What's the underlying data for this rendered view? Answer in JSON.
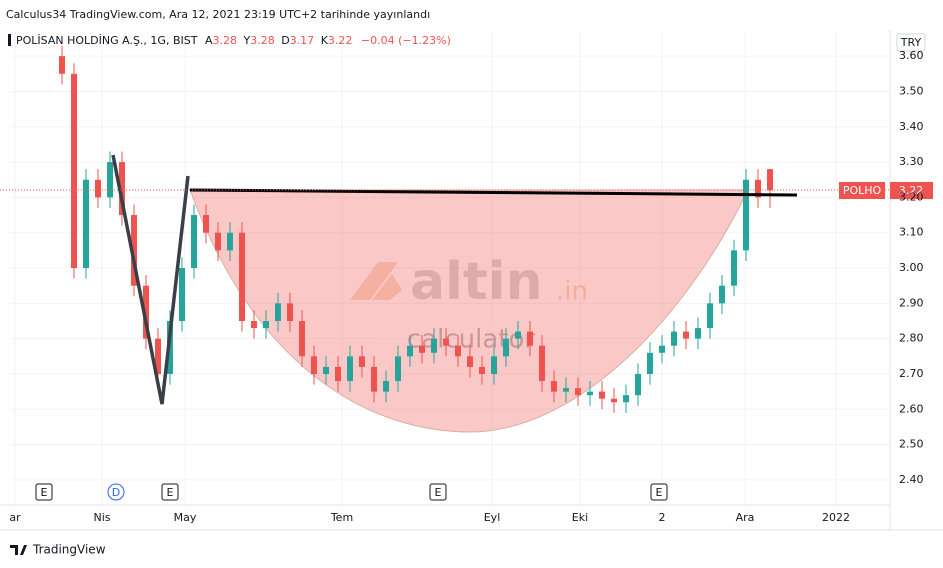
{
  "chart_data": {
    "type": "candlestick",
    "published": "Calculus34 TradingView.com, Ara 12, 2021 23:19 UTC+2 tarihinde yayınlandı",
    "symbol": "POLİSAN HOLDİNG A.Ş., 1G, BIST",
    "ohlc_labels": [
      "A",
      "Y",
      "D",
      "K"
    ],
    "change": "−0.04 (−1.23%)",
    "currency": "TRY",
    "ticker": "POLHO",
    "watermark": [
      "altin",
      ".in",
      "calculator"
    ],
    "events": [
      "E",
      "D",
      "E",
      "E",
      "E"
    ],
    "footer": "TradingView",
    "up_color": "#26a69a",
    "down_color": "#ef5350",
    "x": [
      13,
      16,
      19,
      22,
      25,
      28,
      31,
      34,
      37,
      40,
      43,
      46,
      49,
      52,
      55,
      58,
      61,
      64,
      67,
      70,
      73,
      76,
      79,
      82,
      85,
      88,
      91,
      94,
      97,
      100,
      103,
      106,
      109,
      112,
      115,
      118,
      121,
      124,
      127,
      130,
      133,
      136,
      139,
      142,
      145,
      148,
      151,
      154,
      157,
      160,
      163,
      166,
      169,
      172,
      175,
      178,
      181,
      184,
      187,
      190
    ],
    "open": [
      3.6,
      3.55,
      3.0,
      3.25,
      3.2,
      3.3,
      3.15,
      2.95,
      2.8,
      2.7,
      2.85,
      3.0,
      3.15,
      3.1,
      3.05,
      3.1,
      2.85,
      2.83,
      2.85,
      2.9,
      2.85,
      2.75,
      2.7,
      2.72,
      2.68,
      2.75,
      2.72,
      2.65,
      2.68,
      2.75,
      2.78,
      2.76,
      2.8,
      2.78,
      2.75,
      2.72,
      2.7,
      2.75,
      2.8,
      2.82,
      2.78,
      2.68,
      2.65,
      2.66,
      2.64,
      2.65,
      2.63,
      2.62,
      2.64,
      2.7,
      2.76,
      2.78,
      2.82,
      2.8,
      2.83,
      2.9,
      2.95,
      3.05,
      3.25,
      3.28
    ],
    "high": [
      3.63,
      3.58,
      3.28,
      3.28,
      3.33,
      3.33,
      3.18,
      2.98,
      2.83,
      2.88,
      3.03,
      3.18,
      3.18,
      3.13,
      3.13,
      3.13,
      2.88,
      2.88,
      2.93,
      2.93,
      2.88,
      2.78,
      2.75,
      2.75,
      2.78,
      2.78,
      2.75,
      2.71,
      2.78,
      2.81,
      2.81,
      2.83,
      2.83,
      2.81,
      2.78,
      2.75,
      2.78,
      2.83,
      2.85,
      2.85,
      2.81,
      2.71,
      2.69,
      2.69,
      2.68,
      2.68,
      2.66,
      2.67,
      2.73,
      2.79,
      2.81,
      2.85,
      2.85,
      2.86,
      2.93,
      2.98,
      3.08,
      3.28,
      3.28,
      3.28
    ],
    "low": [
      3.52,
      2.97,
      2.97,
      3.17,
      3.17,
      3.12,
      2.92,
      2.77,
      2.67,
      2.67,
      2.82,
      2.97,
      3.07,
      3.02,
      3.02,
      2.82,
      2.8,
      2.8,
      2.82,
      2.82,
      2.72,
      2.67,
      2.67,
      2.65,
      2.65,
      2.69,
      2.62,
      2.62,
      2.65,
      2.72,
      2.73,
      2.73,
      2.75,
      2.72,
      2.69,
      2.67,
      2.67,
      2.72,
      2.77,
      2.75,
      2.65,
      2.62,
      2.62,
      2.61,
      2.61,
      2.6,
      2.59,
      2.59,
      2.61,
      2.67,
      2.73,
      2.75,
      2.77,
      2.77,
      2.8,
      2.87,
      2.92,
      3.02,
      3.17,
      3.17
    ],
    "close": [
      3.55,
      3.0,
      3.25,
      3.2,
      3.3,
      3.15,
      2.95,
      2.8,
      2.7,
      2.85,
      3.0,
      3.15,
      3.1,
      3.05,
      3.1,
      2.85,
      2.83,
      2.85,
      2.9,
      2.85,
      2.75,
      2.7,
      2.72,
      2.68,
      2.75,
      2.72,
      2.65,
      2.68,
      2.75,
      2.78,
      2.76,
      2.8,
      2.78,
      2.75,
      2.72,
      2.7,
      2.75,
      2.8,
      2.82,
      2.78,
      2.68,
      2.65,
      2.66,
      2.64,
      2.65,
      2.63,
      2.62,
      2.64,
      2.7,
      2.76,
      2.78,
      2.82,
      2.8,
      2.83,
      2.9,
      2.95,
      3.05,
      3.25,
      3.2,
      3.22
    ],
    "xlim": [
      0,
      220
    ],
    "xticks": [
      {
        "value": 1.25,
        "label": "ar"
      },
      {
        "value": 23,
        "label": "Nis"
      },
      {
        "value": 43.75,
        "label": "May"
      },
      {
        "value": 83,
        "label": "Tem"
      },
      {
        "value": 120.5,
        "label": "Eyl"
      },
      {
        "value": 142.5,
        "label": "Eki"
      },
      {
        "value": 163,
        "label": "2"
      },
      {
        "value": 183.75,
        "label": "Ara"
      },
      {
        "value": 206.5,
        "label": "2022"
      }
    ],
    "ylim": [
      2.329,
      3.674
    ],
    "yticks": [
      {
        "value": 3.6,
        "label": "3.60"
      },
      {
        "value": 3.5,
        "label": "3.50"
      },
      {
        "value": 3.4,
        "label": "3.40"
      },
      {
        "value": 3.3,
        "label": "3.30"
      },
      {
        "value": 3.2,
        "label": "3.20"
      },
      {
        "value": 3.1,
        "label": "3.10"
      },
      {
        "value": 3.0,
        "label": "3.00"
      },
      {
        "value": 2.9,
        "label": "2.90"
      },
      {
        "value": 2.8,
        "label": "2.80"
      },
      {
        "value": 2.7,
        "label": "2.70"
      },
      {
        "value": 2.6,
        "label": "2.60"
      },
      {
        "value": 2.5,
        "label": "2.50"
      },
      {
        "value": 2.4,
        "label": "2.40"
      }
    ],
    "grid": true
  }
}
